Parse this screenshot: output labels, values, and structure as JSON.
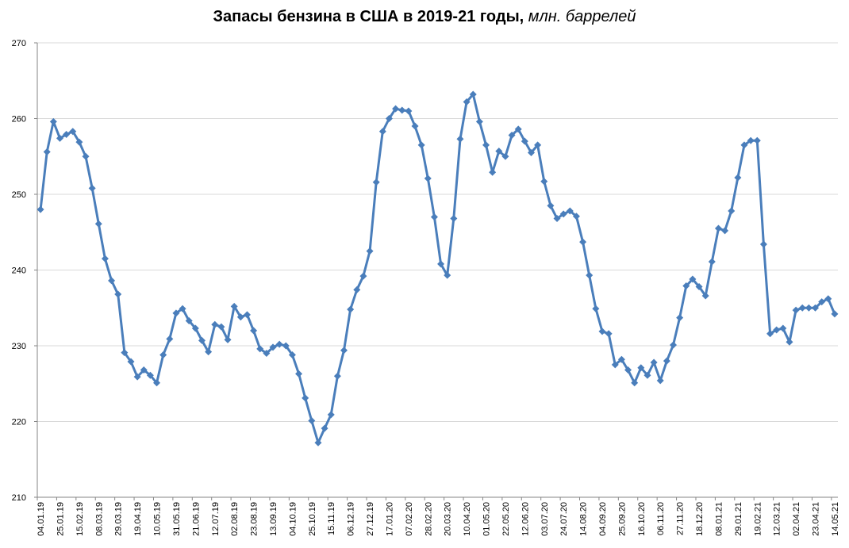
{
  "chart_data": {
    "type": "line",
    "title": "Запасы бензина в США в 2019-21 годы,",
    "title_unit": "млн. баррелей",
    "ylim": [
      210,
      270
    ],
    "yticks": [
      210,
      220,
      230,
      240,
      250,
      260,
      270
    ],
    "grid": true,
    "legend": "none",
    "line_color": "#4A7EBB",
    "x_labels": [
      "04.01.19",
      "25.01.19",
      "15.02.19",
      "08.03.19",
      "29.03.19",
      "19.04.19",
      "10.05.19",
      "31.05.19",
      "21.06.19",
      "12.07.19",
      "02.08.19",
      "23.08.19",
      "13.09.19",
      "04.10.19",
      "25.10.19",
      "15.11.19",
      "06.12.19",
      "27.12.19",
      "17.01.20",
      "07.02.20",
      "28.02.20",
      "20.03.20",
      "10.04.20",
      "01.05.20",
      "22.05.20",
      "12.06.20",
      "03.07.20",
      "24.07.20",
      "14.08.20",
      "04.09.20",
      "25.09.20",
      "16.10.20",
      "06.11.20",
      "27.11.20",
      "18.12.20",
      "08.01.21",
      "29.01.21",
      "19.02.21",
      "12.03.21",
      "02.04.21",
      "23.04.21",
      "14.05.21"
    ],
    "values": [
      248.0,
      255.6,
      259.6,
      257.4,
      257.9,
      258.3,
      256.9,
      255.0,
      250.8,
      246.1,
      241.5,
      238.6,
      236.8,
      229.1,
      227.9,
      225.9,
      226.8,
      226.1,
      225.1,
      228.8,
      230.9,
      234.3,
      234.9,
      233.3,
      232.3,
      230.7,
      229.2,
      232.8,
      232.5,
      230.8,
      235.2,
      233.8,
      234.1,
      232.0,
      229.6,
      229.0,
      229.8,
      230.2,
      230.0,
      228.8,
      226.3,
      223.1,
      220.1,
      217.2,
      219.1,
      220.9,
      226.0,
      229.4,
      234.8,
      237.4,
      239.2,
      242.5,
      251.6,
      258.3,
      260.0,
      261.3,
      261.1,
      261.0,
      259.0,
      256.5,
      252.1,
      247.0,
      240.8,
      239.3,
      246.8,
      257.3,
      262.2,
      263.2,
      259.6,
      256.5,
      252.9,
      255.7,
      255.0,
      257.8,
      258.6,
      257.0,
      255.5,
      256.5,
      251.7,
      248.5,
      246.8,
      247.4,
      247.8,
      247.1,
      243.7,
      239.3,
      234.9,
      231.9,
      231.6,
      227.5,
      228.2,
      226.8,
      225.1,
      227.1,
      226.1,
      227.8,
      225.4,
      228.0,
      230.1,
      233.7,
      237.9,
      238.8,
      237.8,
      236.6,
      241.1,
      245.5,
      245.2,
      247.8,
      252.2,
      256.5,
      257.1,
      257.1,
      243.4,
      231.6,
      232.1,
      232.3,
      230.5,
      234.7,
      235.0,
      235.0,
      235.0,
      235.8,
      236.2,
      234.2
    ]
  }
}
